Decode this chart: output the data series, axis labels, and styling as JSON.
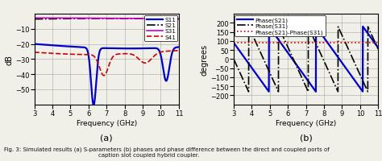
{
  "title_caption": "Fig. 3: Simulated results (a) S-parameters (b) phases and phase difference between the direct and coupled ports of\n        caption slot coupled hybrid coupler.",
  "subplot_a_label": "(a)",
  "subplot_b_label": "(b)",
  "freq_min": 3,
  "freq_max": 11,
  "left_ylim": [
    -60,
    0
  ],
  "left_yticks": [
    -50,
    -40,
    -30,
    -20,
    -10
  ],
  "left_ylabel": "dB",
  "right_ylim": [
    -250,
    250
  ],
  "right_yticks": [
    -200,
    -150,
    -100,
    -50,
    0,
    50,
    100,
    150,
    200
  ],
  "right_ylabel": "degrees",
  "xlabel": "Frequency (GHz)",
  "legend_left": [
    "S11",
    "S21",
    "S31",
    "S41"
  ],
  "legend_right": [
    "Phase(S21)",
    "Phase(S31)",
    "Phase(S21)-Phase(S31)"
  ],
  "colors_left": [
    "#0000cc",
    "#000000",
    "#cc00cc",
    "#cc0000"
  ],
  "linestyles_left": [
    "-",
    "-.",
    "-",
    "--"
  ],
  "colors_right": [
    "#0000cc",
    "#000000",
    "#cc0000"
  ],
  "linestyles_right": [
    "-",
    "-.",
    ":"
  ],
  "background": "#f0f0e8"
}
